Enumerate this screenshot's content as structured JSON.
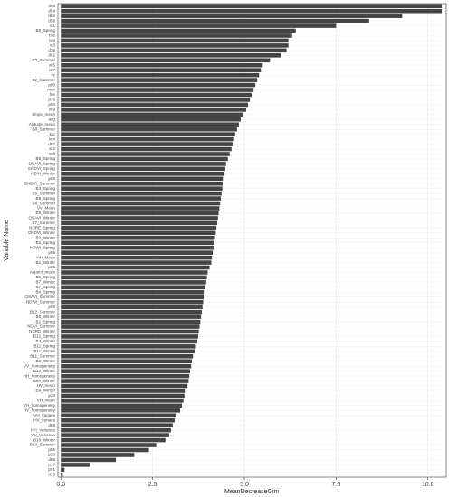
{
  "chart_data": {
    "type": "barh",
    "x_label": "MeanDecreaseGini",
    "y_label": "Variable Name",
    "categories": [
      "d65",
      "d54",
      "d82",
      "d58",
      "vt1",
      "B8_Spring",
      "cse",
      "cov",
      "vt3",
      "d35",
      "d62",
      "B3_Summer",
      "vc5",
      "vc7",
      "vc",
      "B2_Summer",
      "p50",
      "max",
      "fire",
      "p75",
      "p90",
      "vc9",
      "Slope_mean",
      "avg",
      "Altitude_mean",
      "B8_Summer",
      "kur",
      "vc4",
      "d57",
      "vc2",
      "vc8",
      "B6_Spring",
      "OSAVI_Spring",
      "GNDVI_Spring",
      "NDVI_Winter",
      "p95",
      "GNDVI_Summer",
      "B3_Spring",
      "B5_Summer",
      "B9_Spring",
      "B4_Summer",
      "VV_Mean",
      "B5_Winter",
      "OSAVI_Winter",
      "B7_Summer",
      "NDRE_Spring",
      "GNDVI_Winter",
      "B2_Winter",
      "B2_Spring",
      "NDWI_Spring",
      "p85",
      "HH_Mean",
      "B1_Winter",
      "p25",
      "Aspect_mean",
      "B5_Spring",
      "B7_Winter",
      "B7_Spring",
      "B4_Spring",
      "OSAVI_Summer",
      "NDWI_Summer",
      "p99",
      "B12_Summer",
      "B6_Winter",
      "B1_Spring",
      "NDVI_Summer",
      "NDRE_Winter",
      "B12_Spring",
      "B4_Winter",
      "B11_Spring",
      "B11_Winter",
      "B11_Summer",
      "B8_Winter",
      "VV_homogeneity",
      "B12_Winter",
      "HH_homogeneity",
      "B8A_Winter",
      "HV_mean",
      "B9_Winter",
      "p30",
      "VH_mean",
      "VH_homogeneity",
      "HV_homogeneity",
      "VH_variace",
      "HV_variace",
      "d88",
      "HH_Variance",
      "VV_Variance",
      "B10_Winter",
      "B10_Summer",
      "p05",
      "p20",
      "d89",
      "p10",
      "p01",
      "d10"
    ],
    "values": [
      10.4,
      10.4,
      9.3,
      8.4,
      7.5,
      6.4,
      6.3,
      6.2,
      6.2,
      6.15,
      6.0,
      5.7,
      5.5,
      5.45,
      5.4,
      5.35,
      5.3,
      5.25,
      5.2,
      5.15,
      5.1,
      5.05,
      4.95,
      4.9,
      4.85,
      4.8,
      4.75,
      4.72,
      4.7,
      4.65,
      4.6,
      4.55,
      4.5,
      4.48,
      4.46,
      4.44,
      4.42,
      4.4,
      4.38,
      4.36,
      4.34,
      4.32,
      4.3,
      4.28,
      4.26,
      4.24,
      4.22,
      4.2,
      4.18,
      4.16,
      4.14,
      4.12,
      4.1,
      4.05,
      4.0,
      3.98,
      3.96,
      3.94,
      3.92,
      3.9,
      3.88,
      3.86,
      3.84,
      3.82,
      3.8,
      3.78,
      3.76,
      3.74,
      3.72,
      3.68,
      3.65,
      3.6,
      3.57,
      3.55,
      3.52,
      3.5,
      3.48,
      3.45,
      3.4,
      3.37,
      3.34,
      3.3,
      3.25,
      3.15,
      3.1,
      3.05,
      3.0,
      2.95,
      2.85,
      2.6,
      2.4,
      2.0,
      1.5,
      0.8,
      0.1,
      0.05
    ],
    "color": "#444444",
    "xlim": [
      -0.08,
      10.5
    ],
    "xticks": [
      {
        "value": 0,
        "label": "0.0"
      },
      {
        "value": 2.5,
        "label": "2.5"
      },
      {
        "value": 5,
        "label": "5.0"
      },
      {
        "value": 7.5,
        "label": "7.5"
      },
      {
        "value": 10,
        "label": "10.0"
      }
    ],
    "grid": true
  }
}
